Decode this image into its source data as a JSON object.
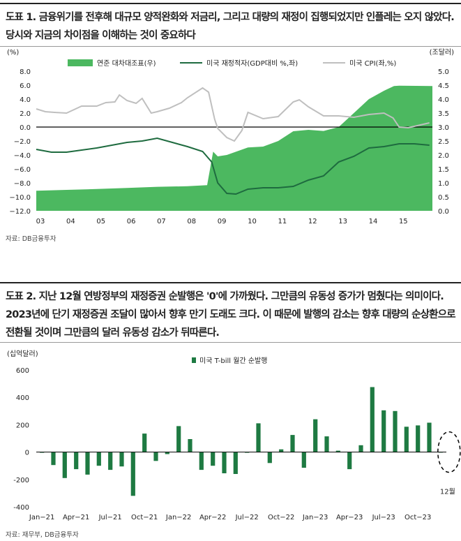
{
  "figure1": {
    "title": "도표 1. 금융위기를 전후해 대규모 양적완화와 저금리, 그리고 대량의 재정이 집행되었지만 인플레는 오지 않았다. 당시와 지금의 차이점을 이해하는 것이 중요하다",
    "source": "자료: DB금융투자"
  },
  "figure2": {
    "title": "도표 2. 지난 12월 연방정부의 재정증권 순발행은 '0'에 가까웠다. 그만큼의 유동성 증가가 멈췄다는 의미이다. 2023년에 단기 재정증권 조달이 많아서 향후 만기 도래도 크다. 이 때문에 발행의 감소는 향후 대량의 순상환으로 전환될 것이며 그만큼의 달러 유동성 감소가 뒤따른다.",
    "source": "자료: 재무부, DB금융투자"
  },
  "chart_data": [
    {
      "type": "area+line",
      "left_unit": "(%)",
      "right_unit": "(조달러)",
      "legend": [
        "연준 대차대조표(우)",
        "미국 재정적자(GDP대비 %,좌)",
        "미국 CPI(좌,%)"
      ],
      "x_tick_labels": [
        "03",
        "04",
        "05",
        "06",
        "07",
        "08",
        "09",
        "10",
        "11",
        "12",
        "13",
        "14",
        "15"
      ],
      "x_range": [
        2003.0,
        2016.1
      ],
      "ylim_left": [
        -12,
        8
      ],
      "ylim_right": [
        0,
        5
      ],
      "left_ticks": [
        "8.0",
        "6.0",
        "4.0",
        "2.0",
        "0.0",
        "−2.0",
        "−4.0",
        "−6.0",
        "−8.0",
        "−10.0",
        "−12.0"
      ],
      "right_ticks": [
        "5.0",
        "4.5",
        "4.0",
        "3.5",
        "3.0",
        "2.5",
        "2.0",
        "1.5",
        "1.0",
        "0.5",
        "0.0"
      ],
      "colors": {
        "fed": "#4cb860",
        "deficit": "#1e6b3f",
        "cpi": "#bfbfbf",
        "zero": "#000000"
      },
      "fed_balance_sheet": {
        "x": [
          2003.0,
          2004.0,
          2005.0,
          2006.0,
          2007.0,
          2008.0,
          2008.65,
          2008.85,
          2009.0,
          2009.3,
          2010.0,
          2010.5,
          2011.0,
          2011.5,
          2012.0,
          2012.5,
          2013.0,
          2013.5,
          2014.0,
          2014.5,
          2014.83,
          2015.0,
          2016.1
        ],
        "y": [
          0.72,
          0.75,
          0.78,
          0.82,
          0.86,
          0.88,
          0.92,
          2.12,
          1.95,
          2.0,
          2.27,
          2.3,
          2.5,
          2.85,
          2.9,
          2.86,
          3.0,
          3.5,
          4.0,
          4.3,
          4.47,
          4.48,
          4.47
        ]
      },
      "deficit_pct_gdp": {
        "x": [
          2003.0,
          2003.5,
          2004.0,
          2004.5,
          2005.0,
          2005.5,
          2006.0,
          2006.5,
          2007.0,
          2007.5,
          2008.0,
          2008.5,
          2008.8,
          2009.0,
          2009.3,
          2009.6,
          2010.0,
          2010.5,
          2011.0,
          2011.5,
          2012.0,
          2012.5,
          2013.0,
          2013.5,
          2014.0,
          2014.5,
          2015.0,
          2015.5,
          2016.0
        ],
        "y": [
          -3.2,
          -3.6,
          -3.6,
          -3.3,
          -3.0,
          -2.6,
          -2.2,
          -2.0,
          -1.6,
          -2.2,
          -2.8,
          -3.5,
          -5.0,
          -8.0,
          -9.5,
          -9.6,
          -8.9,
          -8.7,
          -8.7,
          -8.5,
          -7.6,
          -7.0,
          -5.0,
          -4.2,
          -3.0,
          -2.8,
          -2.4,
          -2.4,
          -2.6
        ]
      },
      "cpi_pct": {
        "x": [
          2003.0,
          2003.3,
          2003.6,
          2004.0,
          2004.5,
          2005.0,
          2005.3,
          2005.6,
          2005.75,
          2006.0,
          2006.3,
          2006.5,
          2006.8,
          2007.0,
          2007.4,
          2007.8,
          2008.0,
          2008.5,
          2008.7,
          2008.9,
          2009.0,
          2009.3,
          2009.55,
          2009.8,
          2010.0,
          2010.5,
          2011.0,
          2011.5,
          2011.7,
          2012.0,
          2012.5,
          2013.0,
          2013.5,
          2014.0,
          2014.5,
          2014.8,
          2015.0,
          2015.3,
          2015.6,
          2016.0
        ],
        "y": [
          2.6,
          2.2,
          2.1,
          2.0,
          3.0,
          3.0,
          3.5,
          3.6,
          4.6,
          3.8,
          3.4,
          4.1,
          2.0,
          2.2,
          2.7,
          3.5,
          4.2,
          5.6,
          5.0,
          1.1,
          -0.2,
          -1.5,
          -2.0,
          -0.5,
          2.1,
          1.2,
          1.5,
          3.6,
          3.9,
          2.9,
          1.6,
          1.6,
          1.4,
          1.8,
          2.0,
          1.3,
          0.0,
          -0.1,
          0.2,
          0.6
        ]
      }
    },
    {
      "type": "bar",
      "unit": "(십억달러)",
      "legend": "미국 T-bill 월간 순발행",
      "color": "#1e7a42",
      "ylim": [
        -400,
        600
      ],
      "y_ticks": [
        "600",
        "400",
        "200",
        "0",
        "-200",
        "-400"
      ],
      "categories": [
        "Jan-21",
        "Feb-21",
        "Mar-21",
        "Apr-21",
        "May-21",
        "Jun-21",
        "Jul-21",
        "Aug-21",
        "Sep-21",
        "Oct-21",
        "Nov-21",
        "Dec-21",
        "Jan-22",
        "Feb-22",
        "Mar-22",
        "Apr-22",
        "May-22",
        "Jun-22",
        "Jul-22",
        "Aug-22",
        "Sep-22",
        "Oct-22",
        "Nov-22",
        "Dec-22",
        "Jan-23",
        "Feb-23",
        "Mar-23",
        "Apr-23",
        "May-23",
        "Jun-23",
        "Jul-23",
        "Aug-23",
        "Sep-23",
        "Oct-23",
        "Nov-23",
        "Dec-23"
      ],
      "x_tick_labels": [
        "Jan−21",
        "Apr−21",
        "Jul−21",
        "Oct−21",
        "Jan−22",
        "Apr−22",
        "Jul−22",
        "Oct−22",
        "Jan−23",
        "Apr−23",
        "Jul−23",
        "Oct−23"
      ],
      "values": [
        -5,
        -95,
        -190,
        -125,
        -165,
        -100,
        -130,
        -105,
        -320,
        135,
        -65,
        -15,
        190,
        95,
        -130,
        -100,
        -155,
        -160,
        -5,
        210,
        -80,
        20,
        125,
        -115,
        240,
        115,
        10,
        -125,
        50,
        475,
        305,
        300,
        185,
        195,
        215,
        0
      ],
      "annotation": "12월"
    }
  ]
}
